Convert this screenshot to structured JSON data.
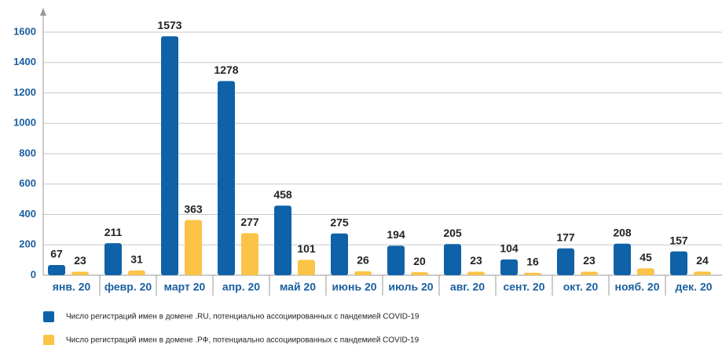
{
  "chart_data": {
    "type": "bar",
    "categories": [
      "янв. 20",
      "февр. 20",
      "март 20",
      "апр. 20",
      "май 20",
      "июнь 20",
      "июль 20",
      "авг. 20",
      "сент. 20",
      "окт. 20",
      "нояб. 20",
      "дек. 20"
    ],
    "series": [
      {
        "name": "Число регистраций имен в домене .RU, потенциально ассоциированных с пандемией  COVID-19",
        "color": "#0f62a8",
        "values": [
          67,
          211,
          1573,
          1278,
          458,
          275,
          194,
          205,
          104,
          177,
          208,
          157
        ]
      },
      {
        "name": "Число регистраций имен в домене .РФ, потенциально ассоциированных с пандемией  COVID-19",
        "color": "#fbc347",
        "values": [
          23,
          31,
          363,
          277,
          101,
          26,
          20,
          23,
          16,
          23,
          45,
          24
        ]
      }
    ],
    "ylim": [
      0,
      1750
    ],
    "yticks": [
      0,
      200,
      400,
      600,
      800,
      1000,
      1200,
      1400,
      1600
    ],
    "grid": true,
    "legend": "bottom"
  }
}
